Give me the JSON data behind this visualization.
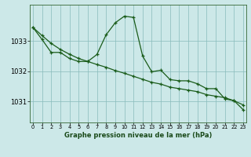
{
  "title": "Graphe pression niveau de la mer (hPa)",
  "bg_color": "#cce8e8",
  "grid_color": "#88bbbb",
  "line_color": "#1a5c1a",
  "x_ticks": [
    0,
    1,
    2,
    3,
    4,
    5,
    6,
    7,
    8,
    9,
    10,
    11,
    12,
    13,
    14,
    15,
    16,
    17,
    18,
    19,
    20,
    21,
    22,
    23
  ],
  "y_ticks": [
    1031,
    1032,
    1033
  ],
  "ylim": [
    1030.3,
    1034.2
  ],
  "xlim": [
    -0.3,
    23.3
  ],
  "line1_x": [
    0,
    1,
    2,
    3,
    4,
    5,
    6,
    7,
    8,
    9,
    10,
    11,
    12,
    13,
    14,
    15,
    16,
    17,
    18,
    19,
    20,
    21,
    22,
    23
  ],
  "line1_y": [
    1033.45,
    1033.05,
    1032.62,
    1032.62,
    1032.42,
    1032.32,
    1032.32,
    1032.55,
    1033.2,
    1033.6,
    1033.82,
    1033.78,
    1032.5,
    1031.98,
    1032.03,
    1031.72,
    1031.68,
    1031.68,
    1031.58,
    1031.42,
    1031.42,
    1031.08,
    1031.02,
    1030.72
  ],
  "line2_x": [
    0,
    1,
    2,
    3,
    4,
    5,
    6,
    7,
    8,
    9,
    10,
    11,
    12,
    13,
    14,
    15,
    16,
    17,
    18,
    19,
    20,
    21,
    22,
    23
  ],
  "line2_y": [
    1033.45,
    1033.18,
    1032.92,
    1032.72,
    1032.56,
    1032.42,
    1032.32,
    1032.22,
    1032.13,
    1032.02,
    1031.93,
    1031.83,
    1031.73,
    1031.63,
    1031.57,
    1031.47,
    1031.42,
    1031.37,
    1031.32,
    1031.22,
    1031.17,
    1031.12,
    1031.02,
    1030.88
  ],
  "marker_size": 3.5,
  "line_width": 0.9,
  "xlabel_fontsize": 6.0,
  "ytick_fontsize": 6.0,
  "xtick_fontsize": 4.8
}
